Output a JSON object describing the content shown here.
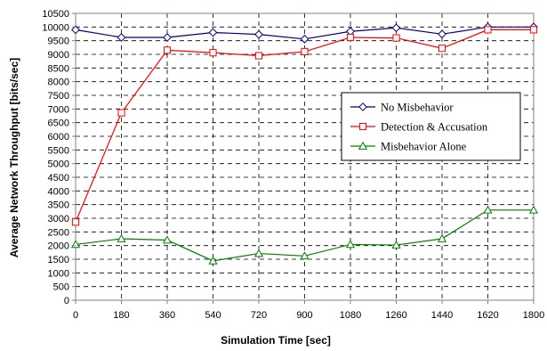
{
  "chart_data": {
    "type": "line",
    "title": "",
    "xlabel": "Simulation Time [sec]",
    "ylabel": "Average Network Throughput [bits/sec]",
    "x": [
      0,
      180,
      360,
      540,
      720,
      900,
      1080,
      1260,
      1440,
      1620,
      1800
    ],
    "xlim": [
      0,
      1800
    ],
    "ylim": [
      0,
      10500
    ],
    "x_ticks": [
      "0",
      "180",
      "360",
      "540",
      "720",
      "900",
      "1080",
      "1260",
      "1440",
      "1620",
      "1800"
    ],
    "y_ticks": [
      "0",
      "500",
      "1000",
      "1500",
      "2000",
      "2500",
      "3000",
      "3500",
      "4000",
      "4500",
      "5000",
      "5500",
      "6000",
      "6500",
      "7000",
      "7500",
      "8000",
      "8500",
      "9000",
      "9500",
      "10000",
      "10500"
    ],
    "grid": true,
    "legend_position": "right",
    "series": [
      {
        "name": "No Misbehavior",
        "color": "#000080",
        "marker": "diamond",
        "values": [
          9900,
          9620,
          9620,
          9800,
          9730,
          9560,
          9840,
          9970,
          9740,
          10000,
          10000
        ]
      },
      {
        "name": "Detection & Accusation",
        "color": "#ff0000",
        "marker": "square",
        "values": [
          2860,
          6860,
          9150,
          9060,
          8950,
          9100,
          9620,
          9600,
          9220,
          9900,
          9900
        ]
      },
      {
        "name": "Misbehavior Alone",
        "color": "#008000",
        "marker": "triangle",
        "values": [
          2040,
          2250,
          2200,
          1440,
          1710,
          1620,
          2040,
          2020,
          2250,
          3300,
          3300
        ]
      }
    ]
  }
}
